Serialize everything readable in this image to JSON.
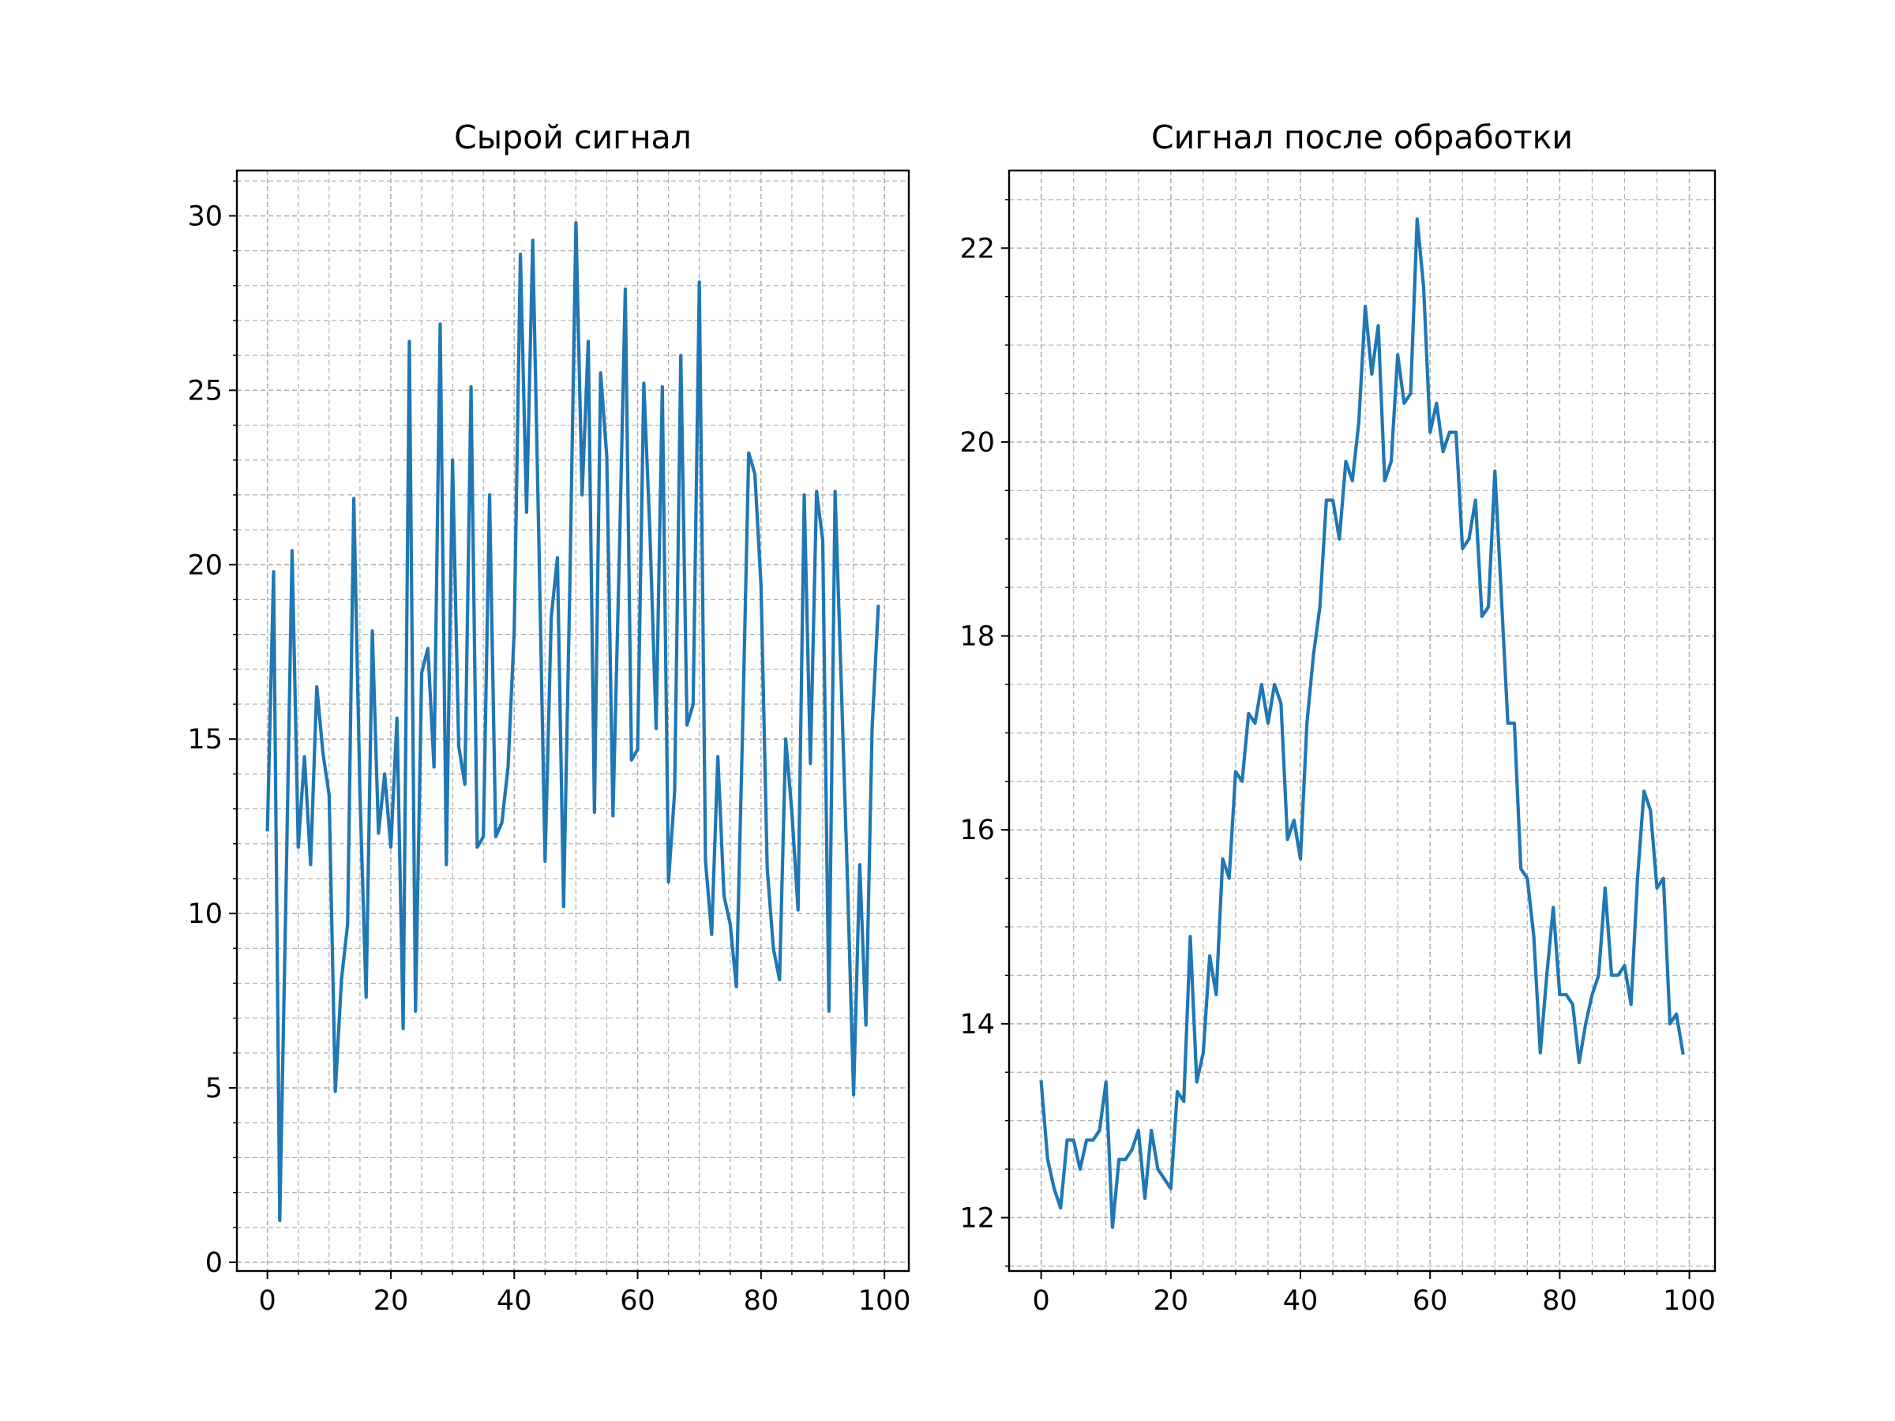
{
  "chart_data": [
    {
      "type": "line",
      "title": "Сырой сигнал",
      "xlabel": "",
      "ylabel": "",
      "xlim": [
        -4.95,
        103.95
      ],
      "ylim": [
        -0.25,
        31.3
      ],
      "xticks": [
        0,
        20,
        40,
        60,
        80,
        100
      ],
      "yticks": [
        0,
        5,
        10,
        15,
        20,
        25,
        30
      ],
      "xminor_step": 5,
      "yminor_step": 1,
      "grid": "major and minor, dashed",
      "color": "#1f77b4",
      "series": [
        {
          "x": [
            0,
            1,
            2,
            3,
            4,
            5,
            6,
            7,
            8,
            9,
            10,
            11,
            12,
            13,
            14,
            15,
            16,
            17,
            18,
            19,
            20,
            21,
            22,
            23,
            24,
            25,
            26,
            27,
            28,
            29,
            30,
            31,
            32,
            33,
            34,
            35,
            36,
            37,
            38,
            39,
            40,
            41,
            42,
            43,
            44,
            45,
            46,
            47,
            48,
            49,
            50,
            51,
            52,
            53,
            54,
            55,
            56,
            57,
            58,
            59,
            60,
            61,
            62,
            63,
            64,
            65,
            66,
            67,
            68,
            69,
            70,
            71,
            72,
            73,
            74,
            75,
            76,
            77,
            78,
            79,
            80,
            81,
            82,
            83,
            84,
            85,
            86,
            87,
            88,
            89,
            90,
            91,
            92,
            93,
            94,
            95,
            96,
            97,
            98,
            99
          ],
          "y": [
            12.4,
            19.8,
            1.2,
            10.5,
            20.4,
            11.9,
            14.5,
            11.4,
            16.5,
            14.6,
            13.4,
            4.9,
            8.1,
            9.7,
            21.9,
            13.4,
            7.6,
            18.1,
            12.3,
            14.0,
            11.9,
            15.6,
            6.7,
            26.4,
            7.2,
            16.9,
            17.6,
            14.2,
            26.9,
            11.4,
            23.0,
            14.8,
            13.7,
            25.1,
            11.9,
            12.2,
            22.0,
            12.2,
            12.6,
            14.2,
            18.1,
            28.9,
            21.5,
            29.3,
            20.6,
            11.5,
            18.5,
            20.2,
            10.2,
            19.3,
            29.8,
            22.0,
            26.4,
            12.9,
            25.5,
            23.1,
            12.8,
            20.0,
            27.9,
            14.4,
            14.7,
            25.2,
            20.9,
            15.3,
            25.1,
            10.9,
            13.5,
            26.0,
            15.4,
            16.0,
            28.1,
            11.5,
            9.4,
            14.5,
            10.5,
            9.7,
            7.9,
            15.2,
            23.2,
            22.6,
            19.4,
            11.3,
            9.0,
            8.1,
            15.0,
            12.9,
            10.1,
            22.0,
            14.3,
            22.1,
            20.7,
            7.2,
            22.1,
            16.6,
            11.0,
            4.8,
            11.4,
            6.8,
            15.3,
            18.8
          ]
        }
      ]
    },
    {
      "type": "line",
      "title": "Сигнал после обработки",
      "xlabel": "",
      "ylabel": "",
      "xlim": [
        -4.95,
        103.95
      ],
      "ylim": [
        11.45,
        22.8
      ],
      "xticks": [
        0,
        20,
        40,
        60,
        80,
        100
      ],
      "yticks": [
        12,
        14,
        16,
        18,
        20,
        22
      ],
      "xminor_step": 5,
      "yminor_step": 0.5,
      "grid": "major and minor, dashed",
      "color": "#1f77b4",
      "series": [
        {
          "x": [
            0,
            1,
            2,
            3,
            4,
            5,
            6,
            7,
            8,
            9,
            10,
            11,
            12,
            13,
            14,
            15,
            16,
            17,
            18,
            19,
            20,
            21,
            22,
            23,
            24,
            25,
            26,
            27,
            28,
            29,
            30,
            31,
            32,
            33,
            34,
            35,
            36,
            37,
            38,
            39,
            40,
            41,
            42,
            43,
            44,
            45,
            46,
            47,
            48,
            49,
            50,
            51,
            52,
            53,
            54,
            55,
            56,
            57,
            58,
            59,
            60,
            61,
            62,
            63,
            64,
            65,
            66,
            67,
            68,
            69,
            70,
            71,
            72,
            73,
            74,
            75,
            76,
            77,
            78,
            79,
            80,
            81,
            82,
            83,
            84,
            85,
            86,
            87,
            88,
            89,
            90,
            91,
            92,
            93,
            94,
            95,
            96,
            97,
            98,
            99
          ],
          "y": [
            13.4,
            12.6,
            12.3,
            12.1,
            12.8,
            12.8,
            12.5,
            12.8,
            12.8,
            12.9,
            13.4,
            11.9,
            12.6,
            12.6,
            12.7,
            12.9,
            12.2,
            12.9,
            12.5,
            12.4,
            12.3,
            13.3,
            13.2,
            14.9,
            13.4,
            13.7,
            14.7,
            14.3,
            15.7,
            15.5,
            16.6,
            16.5,
            17.2,
            17.1,
            17.5,
            17.1,
            17.5,
            17.3,
            15.9,
            16.1,
            15.7,
            17.1,
            17.8,
            18.3,
            19.4,
            19.4,
            19.0,
            19.8,
            19.6,
            20.2,
            21.4,
            20.7,
            21.2,
            19.6,
            19.8,
            20.9,
            20.4,
            20.5,
            22.3,
            21.6,
            20.1,
            20.4,
            19.9,
            20.1,
            20.1,
            18.9,
            19.0,
            19.4,
            18.2,
            18.3,
            19.7,
            18.4,
            17.1,
            17.1,
            15.6,
            15.5,
            14.9,
            13.7,
            14.5,
            15.2,
            14.3,
            14.3,
            14.2,
            13.6,
            14.0,
            14.3,
            14.5,
            15.4,
            14.5,
            14.5,
            14.6,
            14.2,
            15.5,
            16.4,
            16.2,
            15.4,
            15.5,
            14.0,
            14.1,
            13.7
          ]
        }
      ]
    }
  ]
}
